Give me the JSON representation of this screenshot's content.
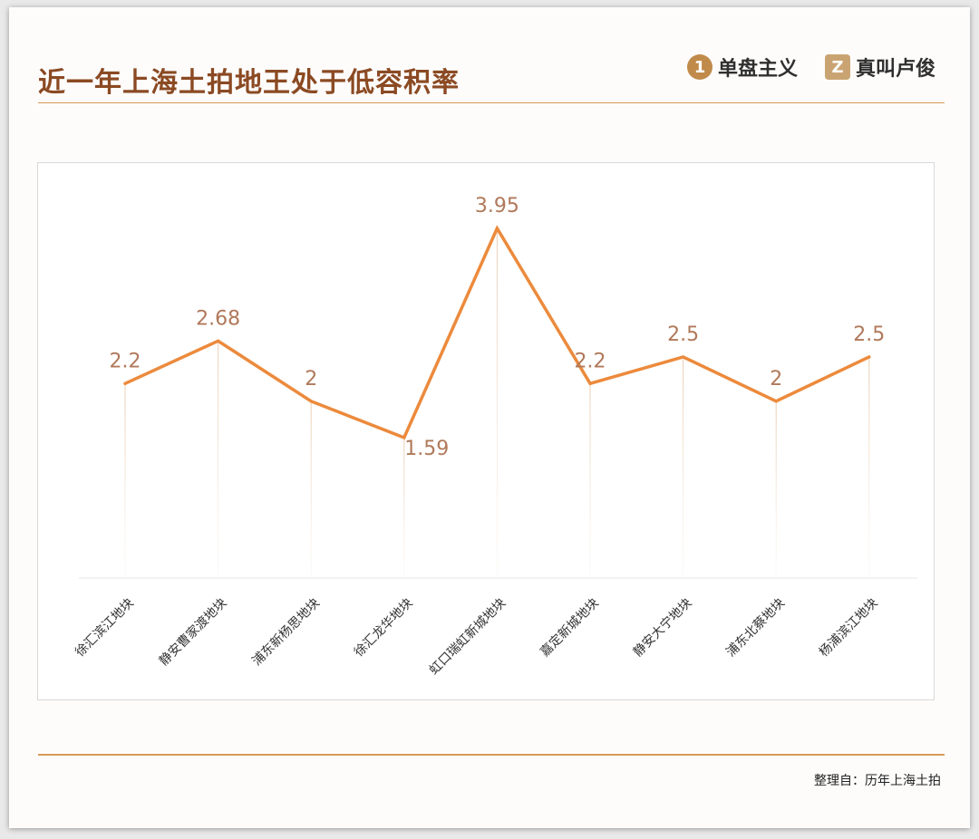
{
  "title": "近一年上海土拍地王处于低容积率",
  "logos": [
    {
      "mark": "1",
      "text": "单盘主义"
    },
    {
      "mark": "Z",
      "text": "真叫卢俊"
    }
  ],
  "source": "整理自：历年上海土拍",
  "colors": {
    "line": "#ec8a3c",
    "label": "#b0795a",
    "title": "#8b4a23",
    "accent": "#d79a59"
  },
  "chart_data": {
    "type": "line",
    "categories": [
      "徐汇滨江地块",
      "静安曹家渡地块",
      "浦东新杨思地块",
      "徐汇龙华地块",
      "虹口瑞虹新城地块",
      "嘉定新城地块",
      "静安大宁地块",
      "浦东北蔡地块",
      "杨浦滨江地块"
    ],
    "values": [
      2.2,
      2.68,
      2,
      1.59,
      3.95,
      2.2,
      2.5,
      2,
      2.5
    ],
    "value_labels": [
      "2.2",
      "2.68",
      "2",
      "1.59",
      "3.95",
      "2.2",
      "2.5",
      "2",
      "2.5"
    ],
    "label_position": [
      "above",
      "above",
      "above",
      "below",
      "above",
      "above",
      "above",
      "above",
      "above"
    ],
    "xlabel": "",
    "ylabel": "",
    "ylim": [
      0,
      4.5
    ],
    "grid": false
  }
}
